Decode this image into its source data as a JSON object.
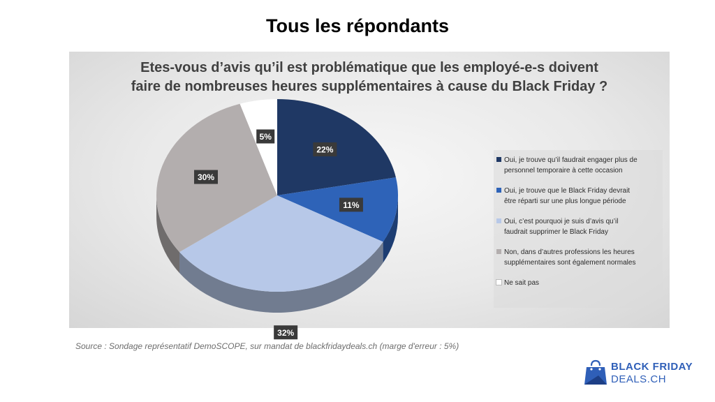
{
  "page": {
    "heading": "Tous les répondants",
    "source": "Source : Sondage représentatif DemoSCOPE, sur mandat de blackfridaydeals.ch (marge d'erreur : 5%)"
  },
  "logo": {
    "line1": "BLACK FRIDAY",
    "line2": "DEALS.CH",
    "icon": "shopping-bag-icon"
  },
  "chart_data": {
    "type": "pie",
    "title_line1": "Etes-vous d’avis qu’il est problématique que les employé-e-s doivent",
    "title_line2": "faire de nombreuses heures supplémentaires à cause du Black Friday ?",
    "legend_position": "right",
    "slices": [
      {
        "label": "Oui, je trouve qu’il faudrait engager plus de personnel temporaire à cette occasion",
        "label_line1": "Oui, je trouve qu’il faudrait engager plus de",
        "label_line2": "personnel temporaire à cette occasion",
        "value": 22,
        "display": "22%",
        "color": "#1f3864"
      },
      {
        "label": "Oui, je trouve que le Black Friday devrait être réparti sur une plus longue période",
        "label_line1": "Oui, je trouve que le Black Friday devrait",
        "label_line2": "être réparti sur une plus longue période",
        "value": 11,
        "display": "11%",
        "color": "#2e63b8"
      },
      {
        "label": "Oui, c’est pourquoi je suis d’avis qu’il faudrait supprimer le Black Friday",
        "label_line1": "Oui, c’est pourquoi je suis d’avis qu’il",
        "label_line2": "faudrait supprimer le Black Friday",
        "value": 32,
        "display": "32%",
        "color": "#b7c8e8"
      },
      {
        "label": "Non, dans d’autres professions les heures supplémentaires sont également normales",
        "label_line1": "Non, dans d’autres professions les heures",
        "label_line2": "supplémentaires sont également normales",
        "value": 30,
        "display": "30%",
        "color": "#b3aeae"
      },
      {
        "label": "Ne sait pas",
        "label_line1": "Ne sait pas",
        "label_line2": "",
        "value": 5,
        "display": "5%",
        "color": "#ffffff"
      }
    ]
  }
}
